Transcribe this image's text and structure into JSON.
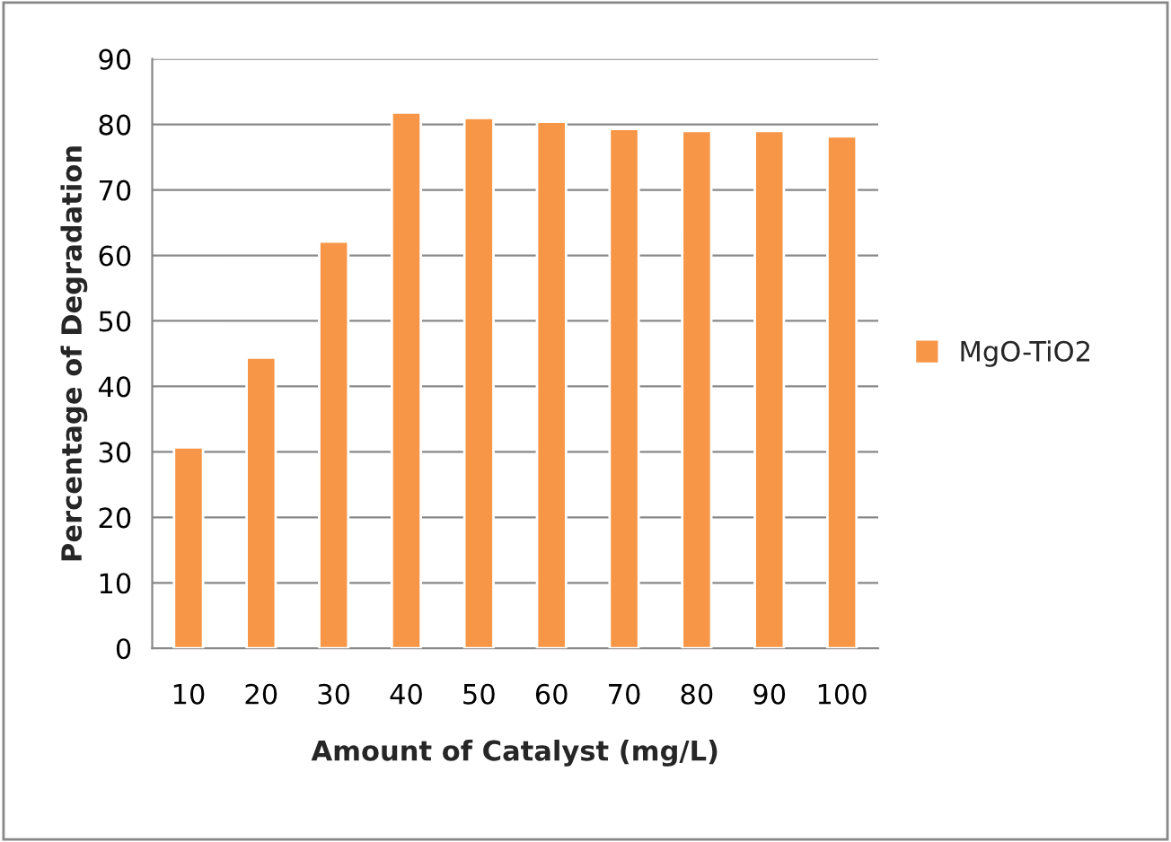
{
  "chart_data": {
    "type": "bar",
    "xlabel": "Amount of Catalyst (mg/L)",
    "ylabel": "Percentage of Degradation",
    "categories": [
      "10",
      "20",
      "30",
      "40",
      "50",
      "60",
      "70",
      "80",
      "90",
      "100"
    ],
    "series": [
      {
        "name": "MgO-TiO2",
        "color": "#f79646",
        "values": [
          30.7,
          44.4,
          62.1,
          81.8,
          81.0,
          80.4,
          79.3,
          79.0,
          79.0,
          78.2
        ]
      }
    ],
    "ylim": [
      0,
      90
    ],
    "yticks": [
      0,
      10,
      20,
      30,
      40,
      50,
      60,
      70,
      80,
      90
    ],
    "grid": "y",
    "legend": "right"
  }
}
